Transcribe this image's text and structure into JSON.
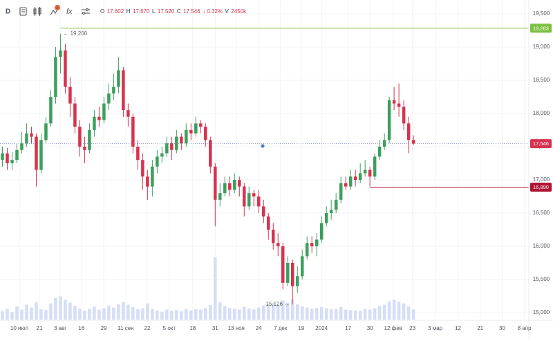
{
  "chart_data": {
    "type": "candlestick",
    "toolbar": {
      "interval": "D",
      "badge": "3",
      "formula_icon": "fx"
    },
    "header": {
      "items": [
        {
          "key": "O",
          "value": "17.602"
        },
        {
          "key": "H",
          "value": "17.670"
        },
        {
          "key": "L",
          "value": "17.520"
        },
        {
          "key": "C",
          "value": "17.546"
        }
      ],
      "change": "↓ 0.32%",
      "volume": {
        "key": "V",
        "value": "2450k"
      }
    },
    "up_color": "#3d9f5d",
    "down_color": "#d6334e",
    "volume_color": "#d5def6",
    "grid": true,
    "x": [
      1,
      3,
      5,
      7,
      9,
      11,
      13,
      15,
      17,
      19,
      21,
      23,
      25,
      27,
      29,
      31,
      33,
      35,
      37,
      39,
      41,
      43,
      45,
      47,
      49,
      51,
      53,
      55,
      57,
      59,
      61,
      63,
      65,
      67,
      69,
      71,
      73,
      75,
      77,
      79,
      81,
      83,
      85,
      87,
      89,
      91,
      93,
      95,
      97,
      99,
      101,
      103,
      105,
      107,
      109,
      111,
      113,
      115,
      117,
      119,
      121,
      123,
      125,
      127,
      129,
      131,
      133,
      135,
      137,
      139,
      141,
      143,
      145,
      147,
      149,
      151,
      153,
      155,
      157,
      159,
      161,
      163,
      165,
      167,
      169,
      171
    ],
    "open": [
      17300,
      17400,
      17250,
      17300,
      17450,
      17550,
      17700,
      17650,
      17150,
      17600,
      17850,
      18250,
      18850,
      18950,
      18400,
      18150,
      17800,
      17500,
      17450,
      17750,
      17950,
      17900,
      18150,
      18300,
      18400,
      18650,
      18050,
      17950,
      17500,
      17300,
      17050,
      16900,
      17200,
      17350,
      17400,
      17550,
      17450,
      17650,
      17550,
      17750,
      17700,
      17850,
      17800,
      17600,
      17200,
      16700,
      16800,
      16950,
      16850,
      17000,
      16900,
      16600,
      16800,
      16750,
      16600,
      16450,
      16250,
      16050,
      16000,
      15450,
      15750,
      15400,
      15550,
      15850,
      16050,
      16000,
      16100,
      16350,
      16500,
      16550,
      16700,
      16950,
      16900,
      17050,
      17000,
      17100,
      17150,
      17050,
      17350,
      17500,
      17600,
      18200,
      18150,
      18100,
      17850,
      17602
    ],
    "high": [
      17500,
      17480,
      17420,
      17550,
      17720,
      17850,
      17800,
      17700,
      17700,
      17950,
      18350,
      19000,
      19200,
      19050,
      18550,
      18250,
      17900,
      17650,
      17850,
      18050,
      18100,
      18250,
      18450,
      18600,
      18850,
      18700,
      18150,
      18000,
      17600,
      17400,
      17150,
      17300,
      17450,
      17500,
      17650,
      17650,
      17750,
      17700,
      17850,
      17850,
      17950,
      17900,
      17850,
      17650,
      17250,
      16950,
      17050,
      17050,
      17100,
      17050,
      16950,
      16900,
      16850,
      16850,
      16700,
      16500,
      16350,
      16200,
      16050,
      15850,
      15800,
      15700,
      15950,
      16150,
      16150,
      16200,
      16450,
      16600,
      16700,
      16800,
      17050,
      17050,
      17150,
      17150,
      17250,
      17300,
      17200,
      17400,
      17600,
      17700,
      18250,
      18400,
      18450,
      18200,
      17950,
      17670
    ],
    "low": [
      17200,
      17150,
      17150,
      17250,
      17400,
      17500,
      17550,
      16900,
      17100,
      17550,
      17800,
      18150,
      18600,
      18300,
      17950,
      17700,
      17350,
      17250,
      17400,
      17650,
      17800,
      17850,
      18050,
      18200,
      18300,
      17950,
      17800,
      17400,
      17150,
      16850,
      16700,
      16750,
      17100,
      17250,
      17350,
      17300,
      17400,
      17450,
      17500,
      17600,
      17650,
      17700,
      17500,
      17100,
      16300,
      16600,
      16750,
      16750,
      16800,
      16750,
      16450,
      16550,
      16600,
      16500,
      16350,
      16100,
      15950,
      15850,
      15350,
      15400,
      15126,
      15300,
      15500,
      15800,
      15900,
      15850,
      16050,
      16300,
      16400,
      16500,
      16650,
      16850,
      16850,
      16900,
      16950,
      17050,
      16900,
      17000,
      17300,
      17450,
      17550,
      18050,
      17950,
      17750,
      17400,
      17520
    ],
    "close": [
      17400,
      17250,
      17300,
      17450,
      17550,
      17700,
      17650,
      17150,
      17600,
      17850,
      18250,
      18850,
      18950,
      18400,
      18150,
      17800,
      17500,
      17450,
      17750,
      17950,
      17900,
      18150,
      18300,
      18400,
      18650,
      18050,
      17950,
      17500,
      17300,
      17050,
      16900,
      17200,
      17350,
      17400,
      17550,
      17450,
      17650,
      17550,
      17750,
      17700,
      17850,
      17800,
      17600,
      17200,
      16700,
      16800,
      16950,
      16850,
      17000,
      16900,
      16600,
      16800,
      16750,
      16600,
      16450,
      16250,
      16050,
      16000,
      15450,
      15750,
      15400,
      15550,
      15850,
      16050,
      16000,
      16100,
      16350,
      16500,
      16550,
      16700,
      16950,
      16900,
      17050,
      17000,
      17100,
      17150,
      17050,
      17350,
      17500,
      17600,
      18200,
      18150,
      18100,
      17850,
      17600,
      17546
    ],
    "volume": [
      2100,
      2600,
      1800,
      3200,
      2400,
      3600,
      2900,
      4200,
      2500,
      2300,
      3900,
      5200,
      5600,
      4800,
      4100,
      3300,
      2700,
      2200,
      2600,
      3100,
      2400,
      2800,
      3400,
      2900,
      3700,
      4300,
      3600,
      3000,
      2500,
      2700,
      3900,
      2600,
      2200,
      1900,
      2400,
      2100,
      2300,
      2000,
      2600,
      2200,
      2500,
      2400,
      2800,
      3500,
      15000,
      4200,
      3300,
      2800,
      2600,
      2400,
      3100,
      2700,
      2500,
      2900,
      3400,
      3800,
      4000,
      3600,
      4600,
      4100,
      4900,
      3700,
      3200,
      2900,
      2600,
      2800,
      3000,
      2700,
      2500,
      2600,
      3100,
      2400,
      2300,
      2200,
      2100,
      2600,
      2400,
      2700,
      3300,
      3600,
      4400,
      4800,
      4300,
      3900,
      3200,
      2450
    ],
    "vlim": [
      0,
      20000
    ],
    "xlim": [
      0,
      219
    ],
    "xticks": [
      {
        "value": 8,
        "label": "10 июл"
      },
      {
        "value": 16.3,
        "label": "21"
      },
      {
        "value": 24.9,
        "label": "3 авг"
      },
      {
        "value": 33.7,
        "label": "16"
      },
      {
        "value": 42.9,
        "label": "29"
      },
      {
        "value": 52,
        "label": "11 сен"
      },
      {
        "value": 60.9,
        "label": "22"
      },
      {
        "value": 70,
        "label": "5 окт"
      },
      {
        "value": 79.7,
        "label": "18"
      },
      {
        "value": 89,
        "label": "31"
      },
      {
        "value": 97.7,
        "label": "13 ноя"
      },
      {
        "value": 107,
        "label": "24"
      },
      {
        "value": 116,
        "label": "7 дек"
      },
      {
        "value": 124.6,
        "label": "19"
      },
      {
        "value": 133,
        "label": "2024"
      },
      {
        "value": 144,
        "label": "17"
      },
      {
        "value": 153,
        "label": "30"
      },
      {
        "value": 162.6,
        "label": "12 фев"
      },
      {
        "value": 170.6,
        "label": "23"
      },
      {
        "value": 180,
        "label": "3 мар"
      },
      {
        "value": 189.4,
        "label": "12"
      },
      {
        "value": 198.6,
        "label": "21"
      },
      {
        "value": 207.7,
        "label": "30"
      },
      {
        "value": 216.9,
        "label": "8 апр"
      }
    ],
    "ylim": [
      14896,
      19708
    ],
    "yticks": [
      {
        "value": 15000,
        "label": "15,000"
      },
      {
        "value": 15500,
        "label": "15,500"
      },
      {
        "value": 16000,
        "label": "16,000"
      },
      {
        "value": 16500,
        "label": "16,500"
      },
      {
        "value": 17000,
        "label": "17,000"
      },
      {
        "value": 17500,
        "label": "17,500"
      },
      {
        "value": 18000,
        "label": "18,000"
      },
      {
        "value": 18500,
        "label": "18,500"
      },
      {
        "value": 19000,
        "label": "19,000"
      },
      {
        "value": 19500,
        "label": "19,500"
      }
    ],
    "levels": [
      {
        "value": 19283,
        "label": "19,283",
        "color": "#7cc142",
        "start_x": 25,
        "style": "solid"
      },
      {
        "value": 16890,
        "label": "16,890",
        "color": "#b01232",
        "start_x": 153,
        "style": "solid"
      },
      {
        "value": 17546,
        "label": "17,546",
        "color": "#d6334e",
        "start_x": 0,
        "style": "dotted"
      }
    ],
    "annotations": [
      {
        "text": "← 19,200",
        "value": 19200,
        "x": 25,
        "side": "right"
      },
      {
        "text": "15,126 →",
        "value": 15126,
        "x": 121,
        "side": "left"
      }
    ]
  }
}
